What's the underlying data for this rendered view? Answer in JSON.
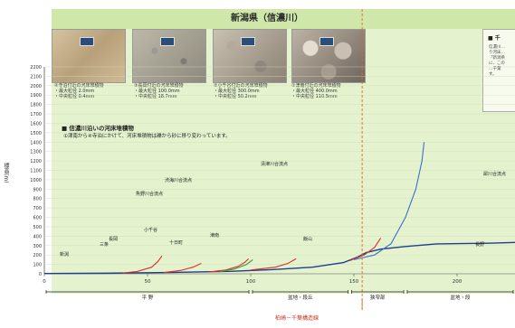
{
  "figure": {
    "title": "新潟県（信濃川）",
    "y_axis_label": "標高(m)",
    "legend_title": "■ 信濃川沿いの河床堆積物",
    "legend_note": "①津南から④寺泊にかけて、河床堆積物は礫から砂に移り変わっています。",
    "bottom_label": "柏崎－千葉構造線",
    "side_title": "■ 千",
    "side_text": [
      "信濃川…",
      "り河床…",
      "「新潟県",
      "に、この",
      "…千葉",
      "す。"
    ]
  },
  "photos": [
    {
      "caption_title": "④寺泊付近の河床堆積物",
      "max_label": "・最大粒径",
      "max_value": "2.0mm",
      "mid_label": "・中央粒径",
      "mid_value": "0.4mm"
    },
    {
      "caption_title": "③長岡付近の河床堆積物",
      "max_label": "・最大粒径",
      "max_value": "100.0mm",
      "mid_label": "・中央粒径",
      "mid_value": "18.7mm"
    },
    {
      "caption_title": "②小千谷付近の河床堆積物",
      "max_label": "・最大粒径",
      "max_value": "300.0mm",
      "mid_label": "・中央粒径",
      "mid_value": "50.2mm"
    },
    {
      "caption_title": "①津南付近の河床堆積物",
      "max_label": "・最大粒径",
      "max_value": "400.0mm",
      "mid_label": "・中央粒径",
      "mid_value": "110.5mm"
    }
  ],
  "y_ticks": [
    "2200",
    "2100",
    "2000",
    "1900",
    "1800",
    "1700",
    "1600",
    "1500",
    "1400",
    "1300",
    "1200",
    "1100",
    "1000",
    "900",
    "800",
    "700",
    "600",
    "500",
    "400",
    "300",
    "200",
    "100",
    "0"
  ],
  "x_ticks": [
    "0",
    "50",
    "100",
    "150",
    "200"
  ],
  "segments": [
    {
      "label": "平 野",
      "color": "#1a1a1a"
    },
    {
      "label": "盆地・段丘",
      "color": "#1a1a1a"
    },
    {
      "label": "狭窄部",
      "color": "#1a1a1a"
    },
    {
      "label": "盆地・段",
      "color": "#1a1a1a"
    }
  ],
  "river_labels": [
    {
      "text": "魚野川合流点"
    },
    {
      "text": "清津川合流点"
    },
    {
      "text": "渋海川合流点"
    },
    {
      "text": "犀川合流点"
    },
    {
      "text": "新潟"
    },
    {
      "text": "三条"
    },
    {
      "text": "長岡"
    },
    {
      "text": "小千谷"
    },
    {
      "text": "十日町"
    },
    {
      "text": "津南"
    },
    {
      "text": "飯山"
    },
    {
      "text": "長野"
    }
  ],
  "colors": {
    "panel": "#e4f2cd",
    "main_river": "#1f3f8a",
    "tributary_blue": "#3a6fd0",
    "tributary_red": "#d8322c",
    "tributary_green": "#3f9a3a",
    "structure_line": "#e26a1e"
  }
}
